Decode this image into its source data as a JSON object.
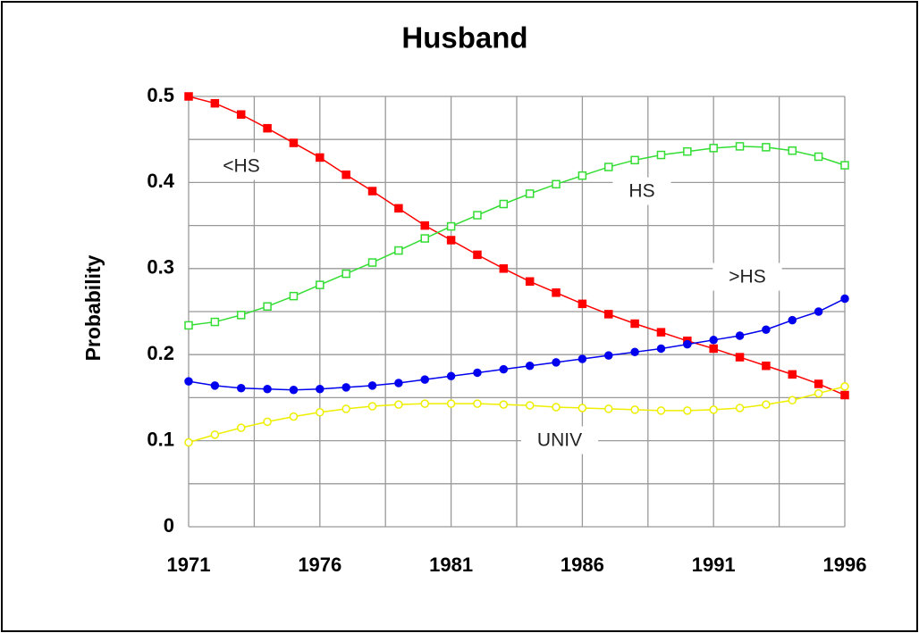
{
  "chart_data": {
    "type": "line",
    "title": "Husband",
    "y_label": "Probability",
    "x": [
      1971,
      1972,
      1973,
      1974,
      1975,
      1976,
      1977,
      1978,
      1979,
      1980,
      1981,
      1982,
      1983,
      1984,
      1985,
      1986,
      1987,
      1988,
      1989,
      1990,
      1991,
      1992,
      1993,
      1994,
      1995,
      1996
    ],
    "series": [
      {
        "name": "<HS",
        "color": "#ff0000",
        "marker": "square-filled",
        "values": [
          0.5,
          0.492,
          0.479,
          0.463,
          0.446,
          0.429,
          0.409,
          0.39,
          0.37,
          0.35,
          0.333,
          0.316,
          0.3,
          0.285,
          0.272,
          0.259,
          0.247,
          0.236,
          0.226,
          0.216,
          0.207,
          0.197,
          0.187,
          0.177,
          0.166,
          0.153
        ]
      },
      {
        "name": "HS",
        "color": "#33dd33",
        "marker": "square-open",
        "values": [
          0.234,
          0.238,
          0.246,
          0.256,
          0.268,
          0.281,
          0.294,
          0.307,
          0.321,
          0.335,
          0.349,
          0.362,
          0.375,
          0.387,
          0.398,
          0.408,
          0.418,
          0.426,
          0.432,
          0.436,
          0.44,
          0.442,
          0.441,
          0.437,
          0.43,
          0.42
        ]
      },
      {
        "name": ">HS",
        "color": "#0000ee",
        "marker": "circle-filled",
        "values": [
          0.169,
          0.164,
          0.161,
          0.16,
          0.159,
          0.16,
          0.162,
          0.164,
          0.167,
          0.171,
          0.175,
          0.179,
          0.183,
          0.187,
          0.191,
          0.195,
          0.199,
          0.203,
          0.207,
          0.212,
          0.217,
          0.222,
          0.229,
          0.24,
          0.25,
          0.265
        ]
      },
      {
        "name": "UNIV",
        "color": "#eeee00",
        "marker": "circle-open",
        "values": [
          0.098,
          0.107,
          0.115,
          0.122,
          0.128,
          0.133,
          0.137,
          0.14,
          0.142,
          0.143,
          0.143,
          0.143,
          0.142,
          0.141,
          0.139,
          0.138,
          0.137,
          0.136,
          0.135,
          0.135,
          0.136,
          0.138,
          0.142,
          0.147,
          0.155,
          0.163
        ]
      }
    ],
    "xlim": [
      1971,
      1996
    ],
    "xticks": [
      1971,
      1976,
      1981,
      1986,
      1991,
      1996
    ],
    "ylim": [
      0,
      0.5
    ],
    "yticks": [
      0,
      0.1,
      0.2,
      0.3,
      0.4,
      0.5
    ],
    "grid": true,
    "minor_grid": true
  }
}
